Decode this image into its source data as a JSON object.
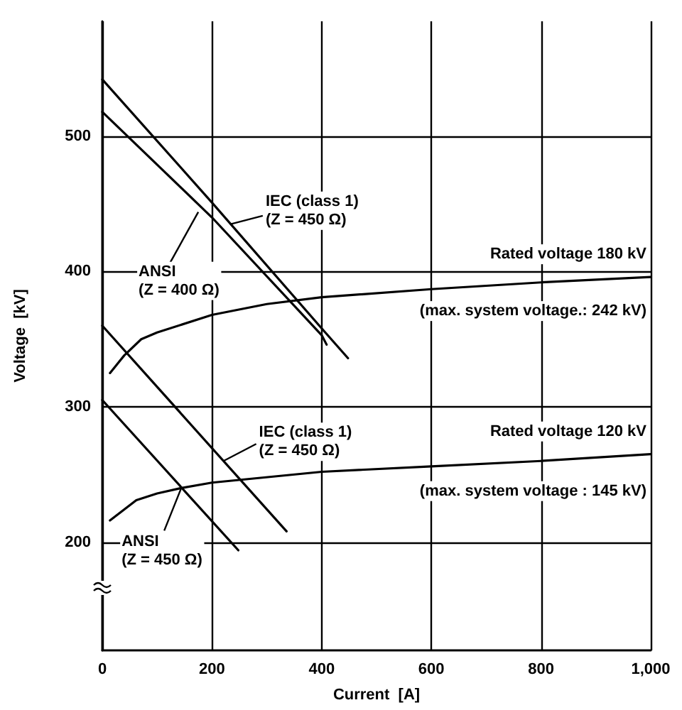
{
  "chart_data": {
    "type": "line",
    "xlabel": "Current  [A]",
    "ylabel": "Voltage  [kV]",
    "xlim": [
      0,
      1000
    ],
    "xticks": [
      0,
      200,
      400,
      600,
      800,
      {
        "value": 1000,
        "label": "1,000"
      }
    ],
    "ylim": [
      120,
      585
    ],
    "yticks": [
      200,
      300,
      400,
      500
    ],
    "grid": true,
    "marker": "none",
    "line_style": "solid",
    "series": [
      {
        "color": "#000000",
        "x": [
          0,
          200,
          400,
          448
        ],
        "values": [
          542,
          451,
          358,
          336
        ]
      },
      {
        "color": "#000000",
        "x": [
          0,
          200,
          400,
          409
        ],
        "values": [
          518,
          440,
          353,
          346
        ]
      },
      {
        "color": "#000000",
        "x": [
          14,
          40,
          71,
          100,
          200,
          300,
          400,
          600,
          800,
          1000
        ],
        "values": [
          325,
          338,
          350,
          355,
          368,
          376,
          381,
          387,
          392,
          396
        ]
      },
      {
        "color": "#000000",
        "x": [
          0,
          336
        ],
        "values": [
          360,
          208
        ]
      },
      {
        "color": "#000000",
        "x": [
          0,
          248
        ],
        "values": [
          305,
          194
        ]
      },
      {
        "color": "#000000",
        "x": [
          14,
          62,
          100,
          144,
          200,
          400,
          600,
          800,
          1000
        ],
        "values": [
          216,
          231,
          236,
          240,
          244,
          252,
          256,
          260,
          265
        ]
      }
    ],
    "annotations": [
      {
        "text": "IEC (class 1)\n(Z = 450 Ω)",
        "x": 233,
        "y": 435
      },
      {
        "text": "ANSI\n(Z = 400 Ω)",
        "x": 175,
        "y": 444
      },
      {
        "text": "IEC (class 1)\n(Z = 450 Ω)",
        "x": 221,
        "y": 260
      },
      {
        "text": "ANSI\n(Z = 450 Ω)",
        "x": 144,
        "y": 240
      },
      {
        "text": "Rated voltage 180 kV",
        "x": 1000,
        "y": 396
      },
      {
        "text": "(max. system voltage.: 242 kV)",
        "x": 1000,
        "y": 396
      },
      {
        "text": "Rated voltage 120 kV",
        "x": 1000,
        "y": 265
      },
      {
        "text": "(max. system voltage : 145 kV)",
        "x": 1000,
        "y": 265
      }
    ]
  }
}
